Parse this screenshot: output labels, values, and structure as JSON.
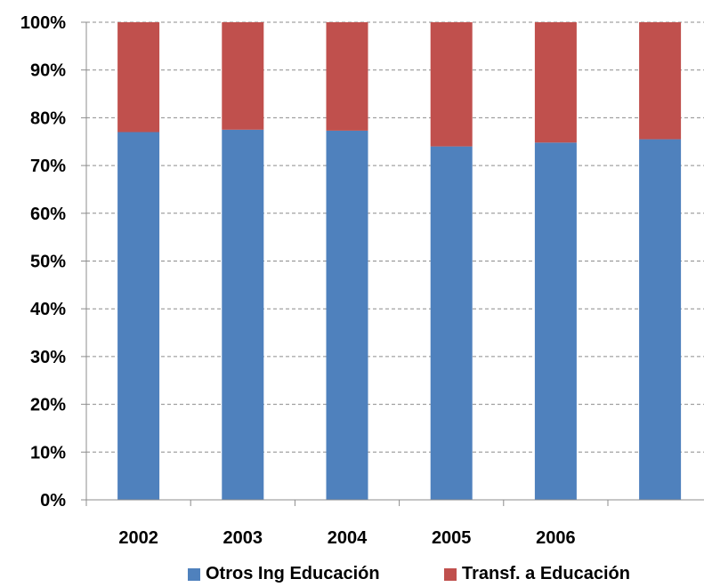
{
  "chart_data": {
    "type": "bar",
    "stacked": "percent",
    "title": "",
    "xlabel": "",
    "ylabel": "",
    "categories": [
      "2002",
      "2003",
      "2004",
      "2005",
      "2006",
      ""
    ],
    "series": [
      {
        "name": "Otros Ing Educación",
        "color": "#4f81bd",
        "values": [
          77,
          77.5,
          77.3,
          74,
          74.8,
          75.5
        ]
      },
      {
        "name": "Transf. a Educación",
        "color": "#c0504d",
        "values": [
          23,
          22.5,
          22.7,
          26,
          25.2,
          24.5
        ]
      }
    ],
    "ylim": [
      0,
      100
    ],
    "yticks": [
      "0%",
      "10%",
      "20%",
      "30%",
      "40%",
      "50%",
      "60%",
      "70%",
      "80%",
      "90%",
      "100%"
    ],
    "grid": true,
    "legend_position": "bottom"
  }
}
